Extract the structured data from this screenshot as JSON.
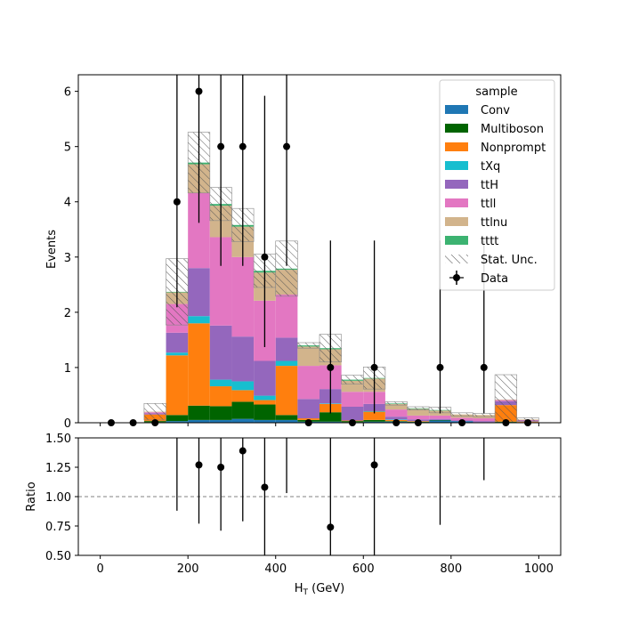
{
  "colors": {
    "Conv": "#1f77b4",
    "Multiboson": "#006400",
    "Nonprompt": "#ff7f0e",
    "tXq": "#17becf",
    "ttH": "#9467bd",
    "ttll": "#e377c2",
    "ttlnu": "#d2b48c",
    "tttt": "#3cb371",
    "data": "#000000",
    "ratio_line": "#808080"
  },
  "chart_data": [
    {
      "type": "bar",
      "stacked": true,
      "xlabel": "H_T (GeV)",
      "xlabel_main": "H",
      "xlabel_sub": "T",
      "xlabel_unit": " (GeV)",
      "ylabel": "Events",
      "xlim": [
        -50,
        1050
      ],
      "ylim": [
        0,
        6.3
      ],
      "xticks": [
        0,
        200,
        400,
        600,
        800,
        1000
      ],
      "xtick_labels": [
        "0",
        "200",
        "400",
        "600",
        "800",
        "1000"
      ],
      "yticks": [
        0,
        1,
        2,
        3,
        4,
        5,
        6
      ],
      "ytick_labels": [
        "0",
        "1",
        "2",
        "3",
        "4",
        "5",
        "6"
      ],
      "bin_edges": [
        0,
        50,
        100,
        150,
        200,
        250,
        300,
        350,
        400,
        450,
        500,
        550,
        600,
        650,
        700,
        750,
        800,
        850,
        900,
        950,
        1000
      ],
      "legend_title": "sample",
      "legend_position": "upper right",
      "legend_labels": {
        "Conv": "Conv",
        "Multiboson": "Multiboson",
        "Nonprompt": "Nonprompt",
        "tXq": "tXq",
        "ttH": "ttH",
        "ttll": "ttll",
        "ttlnu": "ttlnu",
        "tttt": "tttt",
        "unc": "Stat. Unc.",
        "data": "Data"
      },
      "series": [
        {
          "name": "Conv",
          "values": [
            0,
            0,
            0.01,
            0.03,
            0.05,
            0.05,
            0.07,
            0.05,
            0.05,
            0.02,
            0.02,
            0.01,
            0.02,
            0.02,
            0.01,
            0.04,
            0.03,
            0.01,
            0.01,
            0.01
          ]
        },
        {
          "name": "Multiboson",
          "values": [
            0,
            0,
            0.02,
            0.11,
            0.26,
            0.25,
            0.31,
            0.28,
            0.09,
            0.03,
            0.17,
            0.02,
            0.03,
            0.01,
            0.01,
            0.01,
            0,
            0,
            0.01,
            0
          ]
        },
        {
          "name": "Nonprompt",
          "values": [
            0,
            0,
            0.12,
            1.08,
            1.49,
            0.36,
            0.21,
            0.08,
            0.89,
            0.03,
            0.15,
            0.01,
            0.15,
            0.02,
            0.01,
            0,
            0,
            0,
            0.3,
            0.01
          ]
        },
        {
          "name": "tXq",
          "values": [
            0,
            0,
            0,
            0.05,
            0.13,
            0.12,
            0.16,
            0.08,
            0.09,
            0,
            0.01,
            0,
            0.01,
            0.01,
            0,
            0,
            0,
            0,
            0,
            0
          ]
        },
        {
          "name": "ttH",
          "values": [
            0,
            0,
            0.02,
            0.36,
            0.87,
            0.98,
            0.81,
            0.63,
            0.42,
            0.35,
            0.26,
            0.25,
            0.13,
            0.05,
            0.03,
            0.02,
            0.01,
            0.02,
            0.07,
            0.02
          ]
        },
        {
          "name": "ttll",
          "values": [
            0,
            0,
            0.02,
            0.52,
            1.36,
            1.6,
            1.44,
            1.09,
            0.78,
            0.6,
            0.43,
            0.27,
            0.22,
            0.13,
            0.07,
            0.06,
            0.05,
            0.05,
            0.02,
            0.01
          ]
        },
        {
          "name": "ttlnu",
          "values": [
            0,
            0,
            0.01,
            0.21,
            0.52,
            0.57,
            0.55,
            0.51,
            0.45,
            0.35,
            0.29,
            0.2,
            0.24,
            0.1,
            0.12,
            0.09,
            0.06,
            0.06,
            0.01,
            0.01
          ]
        },
        {
          "name": "tttt",
          "values": [
            0,
            0,
            0,
            0.01,
            0.03,
            0.03,
            0.03,
            0.03,
            0.02,
            0.02,
            0.02,
            0.02,
            0.01,
            0.01,
            0.01,
            0.01,
            0,
            0,
            0,
            0
          ]
        }
      ],
      "stat_unc": [
        0,
        0,
        0.15,
        0.6,
        0.55,
        0.3,
        0.3,
        0.3,
        0.5,
        0.05,
        0.25,
        0.08,
        0.2,
        0.03,
        0.03,
        0.05,
        0.03,
        0.03,
        0.45,
        0.03
      ],
      "data_points": {
        "name": "Data",
        "x": [
          25,
          75,
          125,
          175,
          225,
          275,
          325,
          375,
          425,
          475,
          525,
          575,
          625,
          675,
          725,
          775,
          825,
          875,
          925,
          975
        ],
        "y": [
          0,
          0,
          0,
          4,
          6,
          5,
          5,
          3,
          5,
          0,
          1,
          0,
          1,
          0,
          0,
          1,
          0,
          1,
          0,
          0
        ],
        "err_low": [
          0,
          0,
          0,
          1.91,
          2.38,
          2.16,
          2.16,
          1.63,
          2.16,
          0,
          0.83,
          0,
          0.83,
          0,
          0,
          0.83,
          0,
          0.83,
          0,
          0
        ],
        "err_high": [
          0,
          0,
          0,
          3.16,
          3.58,
          3.38,
          3.38,
          2.92,
          3.38,
          0,
          2.3,
          0,
          2.3,
          0,
          0,
          2.3,
          0,
          2.3,
          0,
          0
        ]
      }
    },
    {
      "type": "scatter",
      "xlabel": "H_T (GeV)",
      "ylabel": "Ratio",
      "xlim": [
        -50,
        1050
      ],
      "ylim": [
        0.5,
        1.5
      ],
      "yticks": [
        0.5,
        0.75,
        1.0,
        1.25,
        1.5
      ],
      "ytick_labels": [
        "0.50",
        "0.75",
        "1.00",
        "1.25",
        "1.50"
      ],
      "xticks": [
        0,
        200,
        400,
        600,
        800,
        1000
      ],
      "xtick_labels": [
        "0",
        "200",
        "400",
        "600",
        "800",
        "1000"
      ],
      "reference_line": 1.0,
      "points": [
        {
          "x": 175,
          "y": null,
          "low": 0.88,
          "high": 1.6
        },
        {
          "x": 225,
          "y": 1.27,
          "low": 0.77,
          "high": 1.6
        },
        {
          "x": 275,
          "y": 1.25,
          "low": 0.71,
          "high": 1.6
        },
        {
          "x": 325,
          "y": 1.39,
          "low": 0.79,
          "high": 1.6
        },
        {
          "x": 375,
          "y": 1.08,
          "low": 0.5,
          "high": 1.6
        },
        {
          "x": 425,
          "y": null,
          "low": 1.03,
          "high": 1.6
        },
        {
          "x": 525,
          "y": 0.74,
          "low": 0.5,
          "high": 1.6
        },
        {
          "x": 625,
          "y": 1.27,
          "low": 0.5,
          "high": 1.6
        },
        {
          "x": 775,
          "y": null,
          "low": 0.76,
          "high": 1.6
        },
        {
          "x": 875,
          "y": null,
          "low": 1.14,
          "high": 1.6
        }
      ]
    }
  ]
}
